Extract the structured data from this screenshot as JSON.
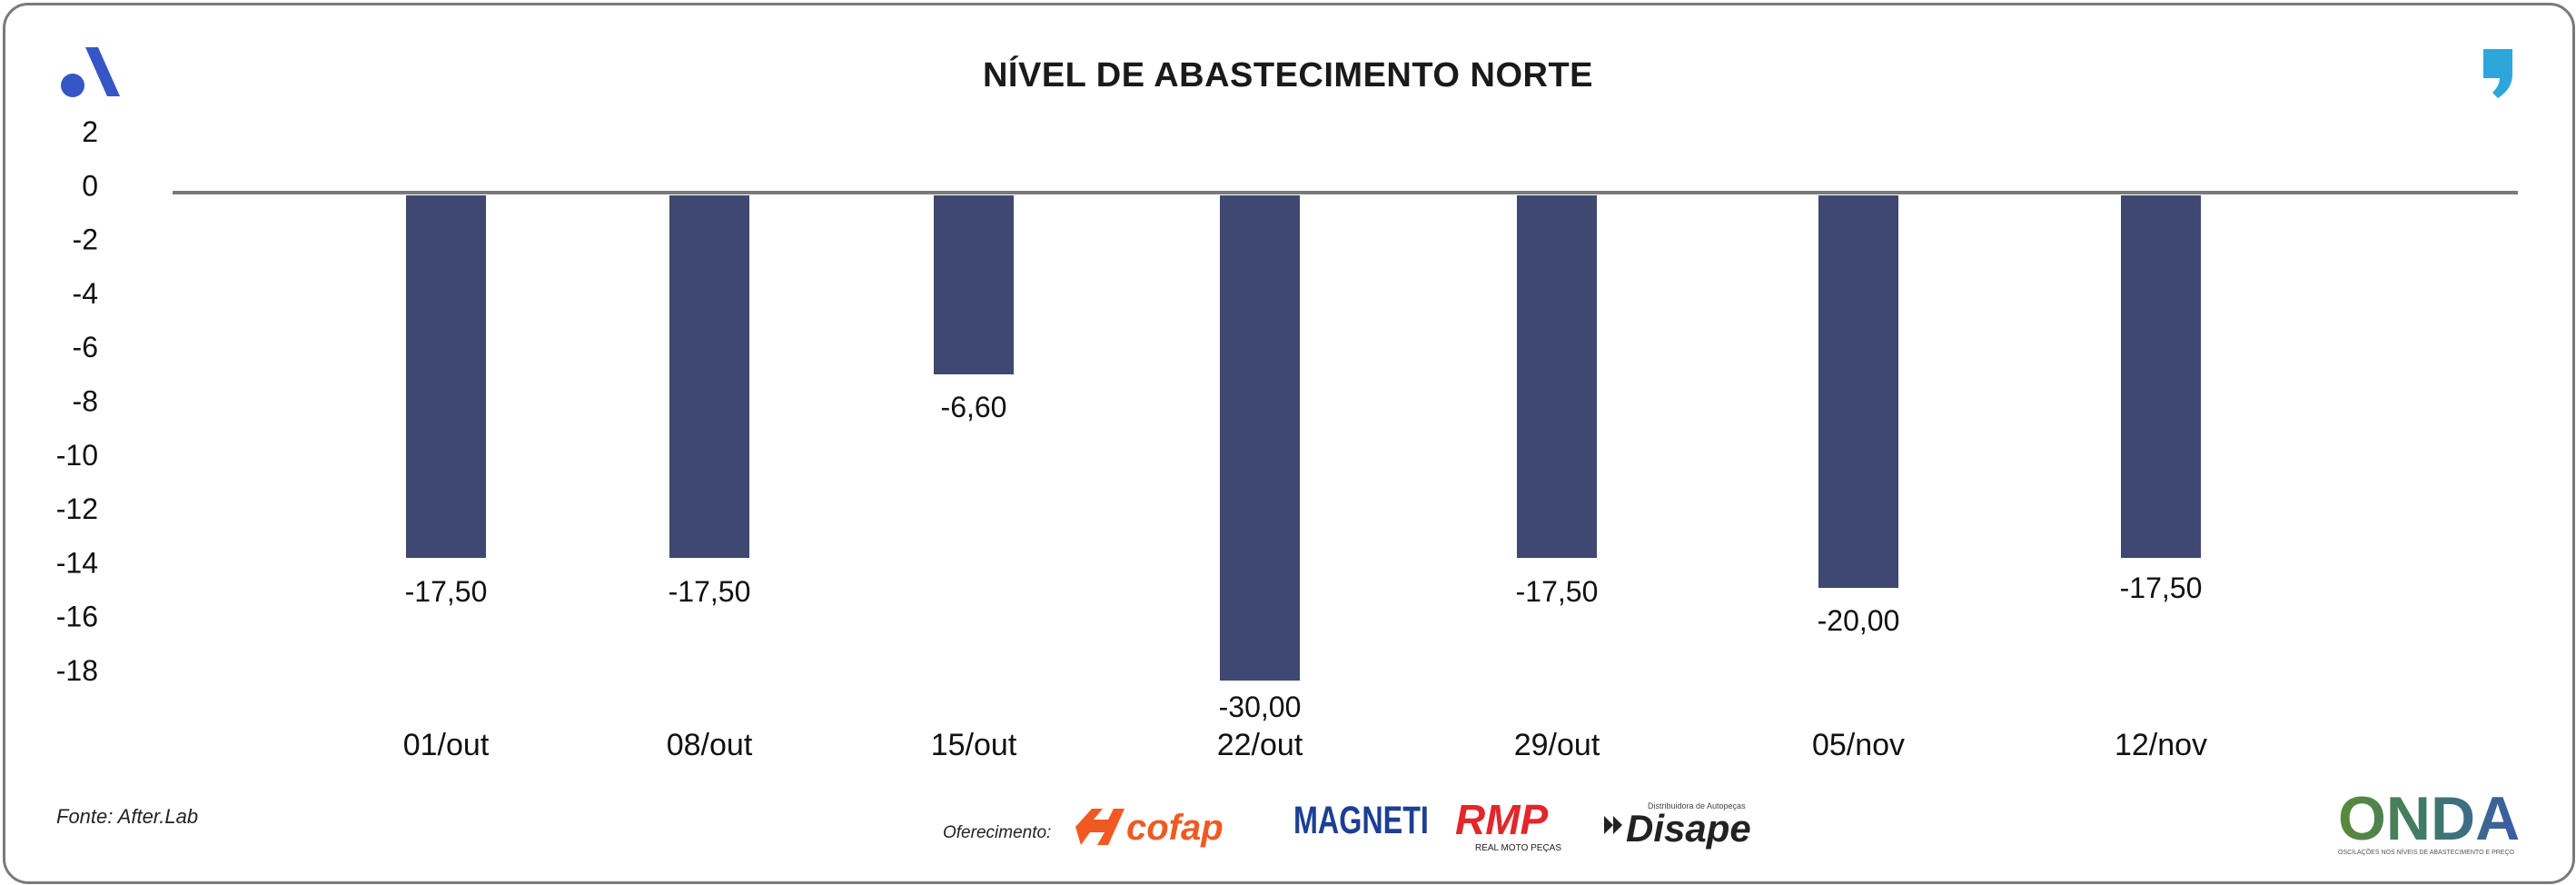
{
  "title": "NÍVEL DE ABASTECIMENTO NORTE",
  "source": "Fonte: After.Lab",
  "offer_label": "Oferecimento:",
  "sponsors": [
    "cofap",
    "MAGNETI MARELLI",
    "RMP",
    "Disape"
  ],
  "sponsor_subtext": {
    "rmp": "REAL MOTO PEÇAS",
    "disape": "Distribuidora de Autopeças"
  },
  "onda": {
    "name": "ONDA",
    "tagline": "OSCILAÇÕES NOS NÍVEIS DE ABASTECIMENTO E PREÇO"
  },
  "colors": {
    "bar": "#3f4870",
    "axis": "#7a7a7a",
    "brand_blue": "#3656c6",
    "quote_blue": "#2ea6dc",
    "cofap": "#f05a22",
    "marelli": "#1c3f94",
    "rmp": "#e3262b",
    "disape": "#222222"
  },
  "icons": [
    "after-lab-logo-icon",
    "quote-mark-icon"
  ],
  "chart_data": {
    "type": "bar",
    "title": "NÍVEL DE ABASTECIMENTO NORTE",
    "categories": [
      "01/out",
      "08/out",
      "15/out",
      "22/out",
      "29/out",
      "05/nov",
      "12/nov"
    ],
    "values": [
      -17.5,
      -17.5,
      -6.6,
      -30.0,
      -17.5,
      -20.0,
      -17.5
    ],
    "data_labels": [
      "-17,50",
      "-17,50",
      "-6,60",
      "-30,00",
      "-17,50",
      "-20,00",
      "-17,50"
    ],
    "y_ticks": [
      "2",
      "0",
      "-2",
      "-4",
      "-6",
      "-8",
      "-10",
      "-12",
      "-14",
      "-16",
      "-18"
    ],
    "xlabel": "",
    "ylabel": "",
    "grid": false,
    "legend": "none"
  }
}
